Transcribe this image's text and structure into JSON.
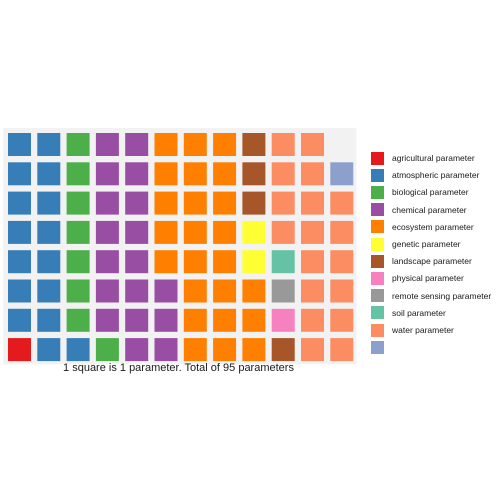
{
  "chart_data": {
    "type": "waffle",
    "caption": "1 square is 1 parameter. Total of 95 parameters",
    "total": 95,
    "categories": [
      {
        "name": "agricultural parameter",
        "value": 1,
        "color": "#E41A1C"
      },
      {
        "name": "atmospheric parameter",
        "value": 16,
        "color": "#377EB8"
      },
      {
        "name": "biological parameter",
        "value": 8,
        "color": "#4DAF4A"
      },
      {
        "name": "chemical parameter",
        "value": 18,
        "color": "#984EA3"
      },
      {
        "name": "ecosystem parameter",
        "value": 24,
        "color": "#FF7F00"
      },
      {
        "name": "genetic parameter",
        "value": 2,
        "color": "#FFFF33"
      },
      {
        "name": "landscape parameter",
        "value": 4,
        "color": "#A65628"
      },
      {
        "name": "physical parameter",
        "value": 1,
        "color": "#F781BF"
      },
      {
        "name": "remote sensing parameter",
        "value": 1,
        "color": "#999999"
      },
      {
        "name": "soil parameter",
        "value": 1,
        "color": "#66C2A5"
      },
      {
        "name": "water parameter",
        "value": 18,
        "color": "#FC8D62"
      },
      {
        "name": "",
        "value": 1,
        "color": "#8DA0CB"
      }
    ],
    "rows": 8,
    "columns": 12,
    "fill_order": "column-wise from bottom-left"
  }
}
